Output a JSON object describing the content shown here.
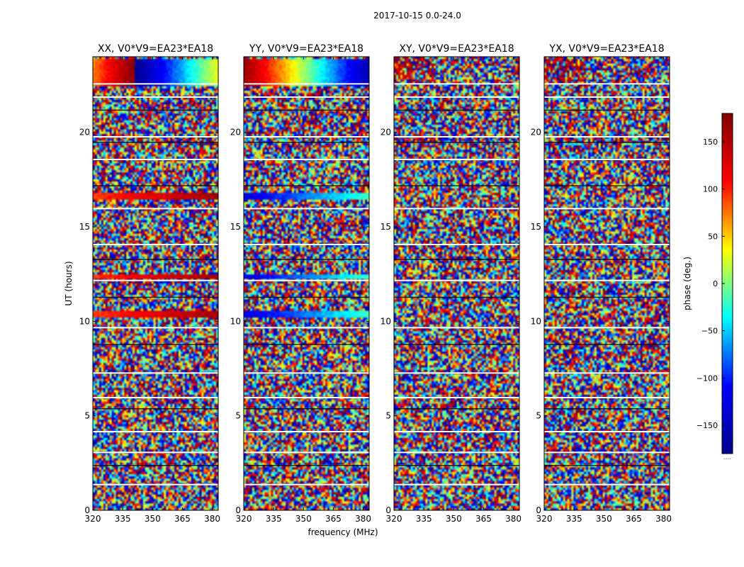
{
  "figure": {
    "suptitle": "2017-10-15 0.0-24.0",
    "xlabel": "frequency (MHz)",
    "ylabel": "UT (hours)",
    "colorbar_label": "phase (deg.)",
    "colorbar_footer": "......"
  },
  "colormap": [
    "#00008f",
    "#0000ff",
    "#00ffff",
    "#ffff00",
    "#ff0000",
    "#800000"
  ],
  "chart_data": [
    {
      "type": "heatmap",
      "title": "XX, V0*V9=EA23*EA18",
      "xlabel": "frequency (MHz)",
      "ylabel": "UT (hours)",
      "xlim": [
        320,
        383
      ],
      "ylim": [
        0,
        24
      ],
      "xticks": [
        320,
        335,
        350,
        365,
        380
      ],
      "yticks": [
        0,
        5,
        10,
        15,
        20
      ],
      "value": "phase (deg.)",
      "coherent_bands": [
        {
          "ut": [
            23.9,
            22.5
          ],
          "pattern": "phase wrap from red to blue across band"
        },
        {
          "ut": [
            16.8,
            16.5
          ],
          "pattern": "red to dark red"
        },
        {
          "ut": [
            12.5,
            12.3
          ],
          "pattern": "red"
        },
        {
          "ut": [
            10.5,
            10.2
          ],
          "pattern": "yellow to red"
        }
      ]
    },
    {
      "type": "heatmap",
      "title": "YY, V0*V9=EA23*EA18",
      "xlabel": "frequency (MHz)",
      "ylabel": "UT (hours)",
      "xlim": [
        320,
        383
      ],
      "ylim": [
        0,
        24
      ],
      "xticks": [
        320,
        335,
        350,
        365,
        380
      ],
      "yticks": [
        0,
        5,
        10,
        15,
        20
      ],
      "value": "phase (deg.)",
      "coherent_bands": [
        {
          "ut": [
            23.9,
            22.5
          ],
          "pattern": "phase wrap from red to cyan/yellow"
        },
        {
          "ut": [
            16.8,
            16.5
          ],
          "pattern": "blue to cyan"
        },
        {
          "ut": [
            12.5,
            12.3
          ],
          "pattern": "blue"
        },
        {
          "ut": [
            10.5,
            10.2
          ],
          "pattern": "blue to cyan"
        }
      ]
    },
    {
      "type": "heatmap",
      "title": "XY, V0*V9=EA23*EA18",
      "xlabel": "frequency (MHz)",
      "ylabel": "UT (hours)",
      "xlim": [
        320,
        383
      ],
      "ylim": [
        0,
        24
      ],
      "xticks": [
        320,
        335,
        350,
        365,
        380
      ],
      "yticks": [
        0,
        5,
        10,
        15,
        20
      ],
      "value": "phase (deg.)",
      "coherent_bands": []
    },
    {
      "type": "heatmap",
      "title": "YX, V0*V9=EA23*EA18",
      "xlabel": "frequency (MHz)",
      "ylabel": "UT (hours)",
      "xlim": [
        320,
        383
      ],
      "ylim": [
        0,
        24
      ],
      "xticks": [
        320,
        335,
        350,
        365,
        380
      ],
      "yticks": [
        0,
        5,
        10,
        15,
        20
      ],
      "value": "phase (deg.)",
      "coherent_bands": []
    },
    {
      "type": "colorbar",
      "label": "phase (deg.)",
      "range": [
        -180,
        180
      ],
      "ticks": [
        -150,
        -100,
        -50,
        0,
        50,
        100,
        150
      ]
    }
  ]
}
